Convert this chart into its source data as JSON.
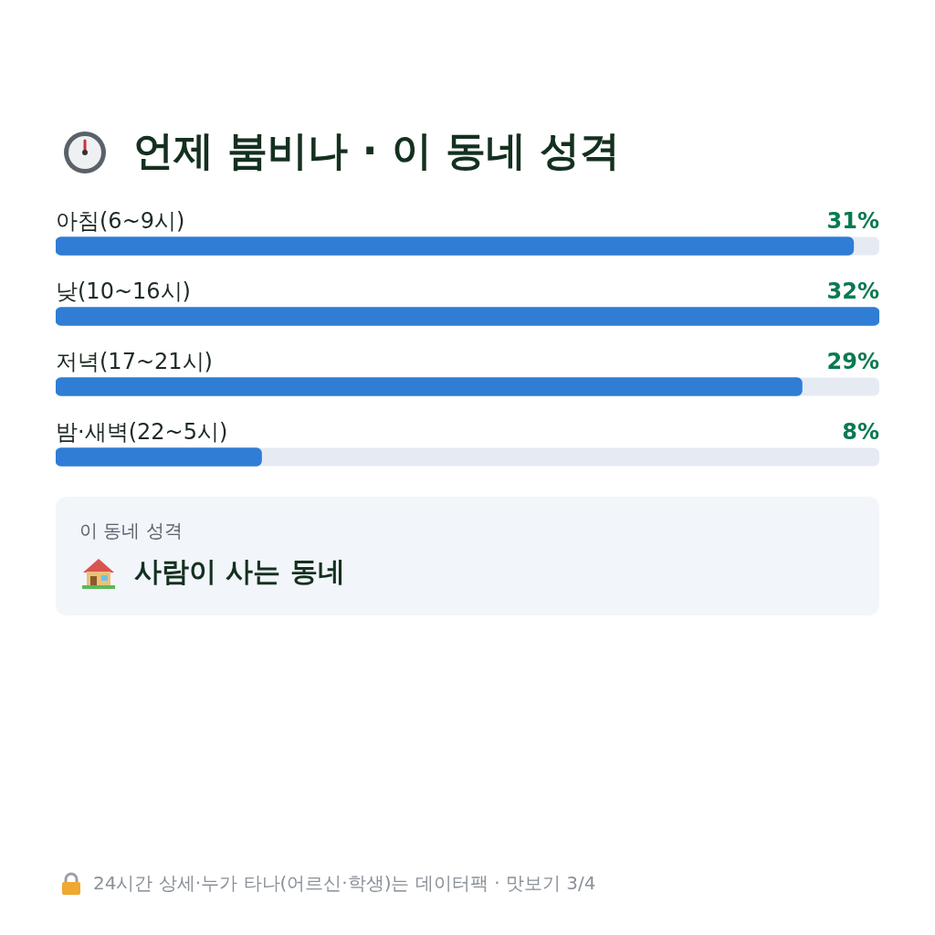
{
  "chart_data": {
    "type": "bar",
    "orientation": "horizontal",
    "title": "언제 붐비나 · 이 동네 성격",
    "categories": [
      "아침(6~9시)",
      "낮(10~16시)",
      "저녁(17~21시)",
      "밤·새벽(22~5시)"
    ],
    "values": [
      31,
      32,
      29,
      8
    ],
    "value_labels": [
      "31%",
      "32%",
      "29%",
      "8%"
    ],
    "color": "#2f7dd4",
    "xlim": [
      0,
      32
    ],
    "legend": false,
    "annotations": [
      "이 동네 성격",
      "사람이 사는 동네",
      "24시간 상세·누가 타나(어르신·학생)는 데이터팩 · 맛보기 3/4"
    ]
  }
}
